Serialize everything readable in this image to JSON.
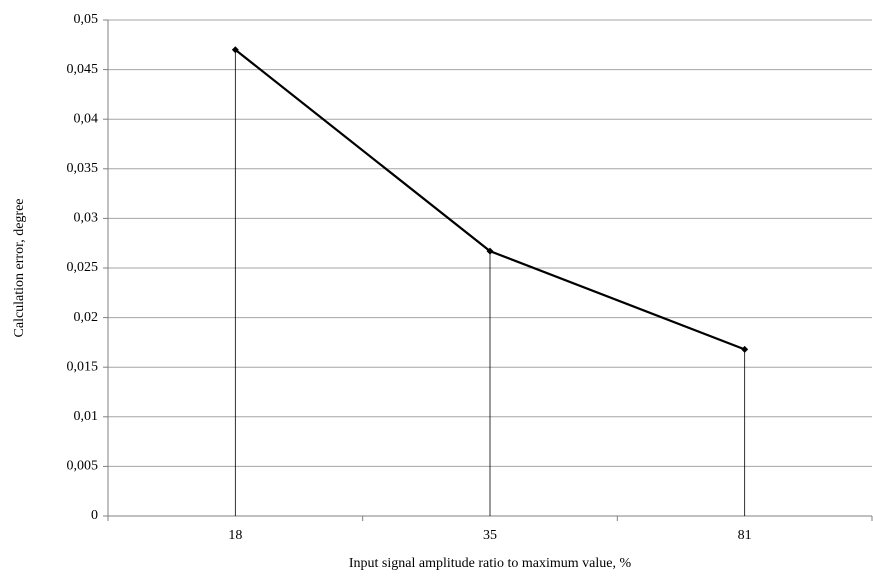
{
  "chart_data": {
    "type": "line",
    "x_label": "Input signal amplitude ratio to maximum value, %",
    "y_label": "Calculation error, degree",
    "categories": [
      "18",
      "35",
      "81"
    ],
    "series": [
      {
        "name": "Calculation error",
        "color": "#000000",
        "values": [
          0.047,
          0.0267,
          0.0168
        ]
      }
    ],
    "ylim": [
      0,
      0.05
    ],
    "yticks": [
      0,
      {
        "value": 0.005,
        "label": "0,005"
      },
      {
        "value": 0.01,
        "label": "0,01"
      },
      {
        "value": 0.015,
        "label": "0,015"
      },
      {
        "value": 0.02,
        "label": "0,02"
      },
      {
        "value": 0.025,
        "label": "0,025"
      },
      {
        "value": 0.03,
        "label": "0,03"
      },
      {
        "value": 0.035,
        "label": "0,035"
      },
      {
        "value": 0.04,
        "label": "0,04"
      },
      {
        "value": 0.045,
        "label": "0,045"
      },
      {
        "value": 0.05,
        "label": "0,05"
      }
    ],
    "grid": true
  }
}
